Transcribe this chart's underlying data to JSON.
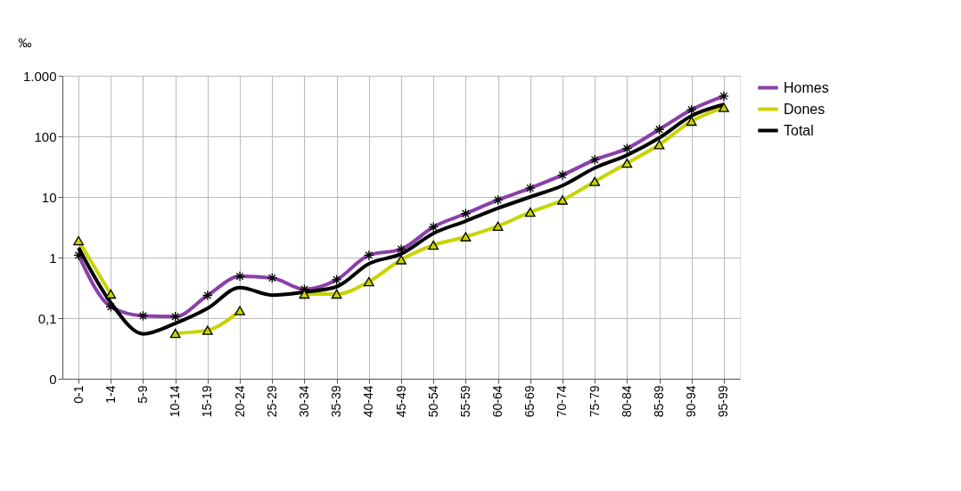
{
  "chart_data": {
    "type": "line",
    "ylabel": "‰",
    "categories": [
      "0-1",
      "1-4",
      "5-9",
      "10-14",
      "15-19",
      "20-24",
      "25-29",
      "30-34",
      "35-39",
      "40-44",
      "45-49",
      "50-54",
      "55-59",
      "60-64",
      "65-69",
      "70-74",
      "75-79",
      "80-84",
      "85-89",
      "90-94",
      "95-99"
    ],
    "series": [
      {
        "name": "Homes",
        "color": "#8b3fa8",
        "marker": "cross",
        "values": [
          1.09,
          0.154,
          0.109,
          0.106,
          0.237,
          0.49,
          0.46,
          0.3,
          0.43,
          1.09,
          1.37,
          3.2,
          5.3,
          8.9,
          14,
          23,
          41,
          63,
          130,
          275,
          460
        ]
      },
      {
        "name": "Dones",
        "color": "#c8d400",
        "marker": "triangle",
        "values": [
          1.9,
          0.25,
          null,
          0.056,
          0.063,
          0.133,
          null,
          0.25,
          0.25,
          0.4,
          0.92,
          1.6,
          2.2,
          3.3,
          5.6,
          8.9,
          18,
          36,
          73,
          178,
          300
        ]
      },
      {
        "name": "Total",
        "color": "#000000",
        "marker": "none",
        "values": [
          1.45,
          0.18,
          0.055,
          0.082,
          0.145,
          0.32,
          0.24,
          0.27,
          0.33,
          0.79,
          1.15,
          2.5,
          4.0,
          6.5,
          10,
          15.4,
          30,
          49,
          94,
          218,
          335
        ]
      }
    ],
    "log": "y",
    "ylim": [
      0.01,
      1000
    ],
    "yticks": [
      {
        "value": 0.01,
        "label": "0"
      },
      {
        "value": 0.1,
        "label": "0,1"
      },
      1,
      10,
      100,
      {
        "value": 1000,
        "label": "1.000"
      }
    ],
    "grid": true,
    "legend": "right"
  }
}
